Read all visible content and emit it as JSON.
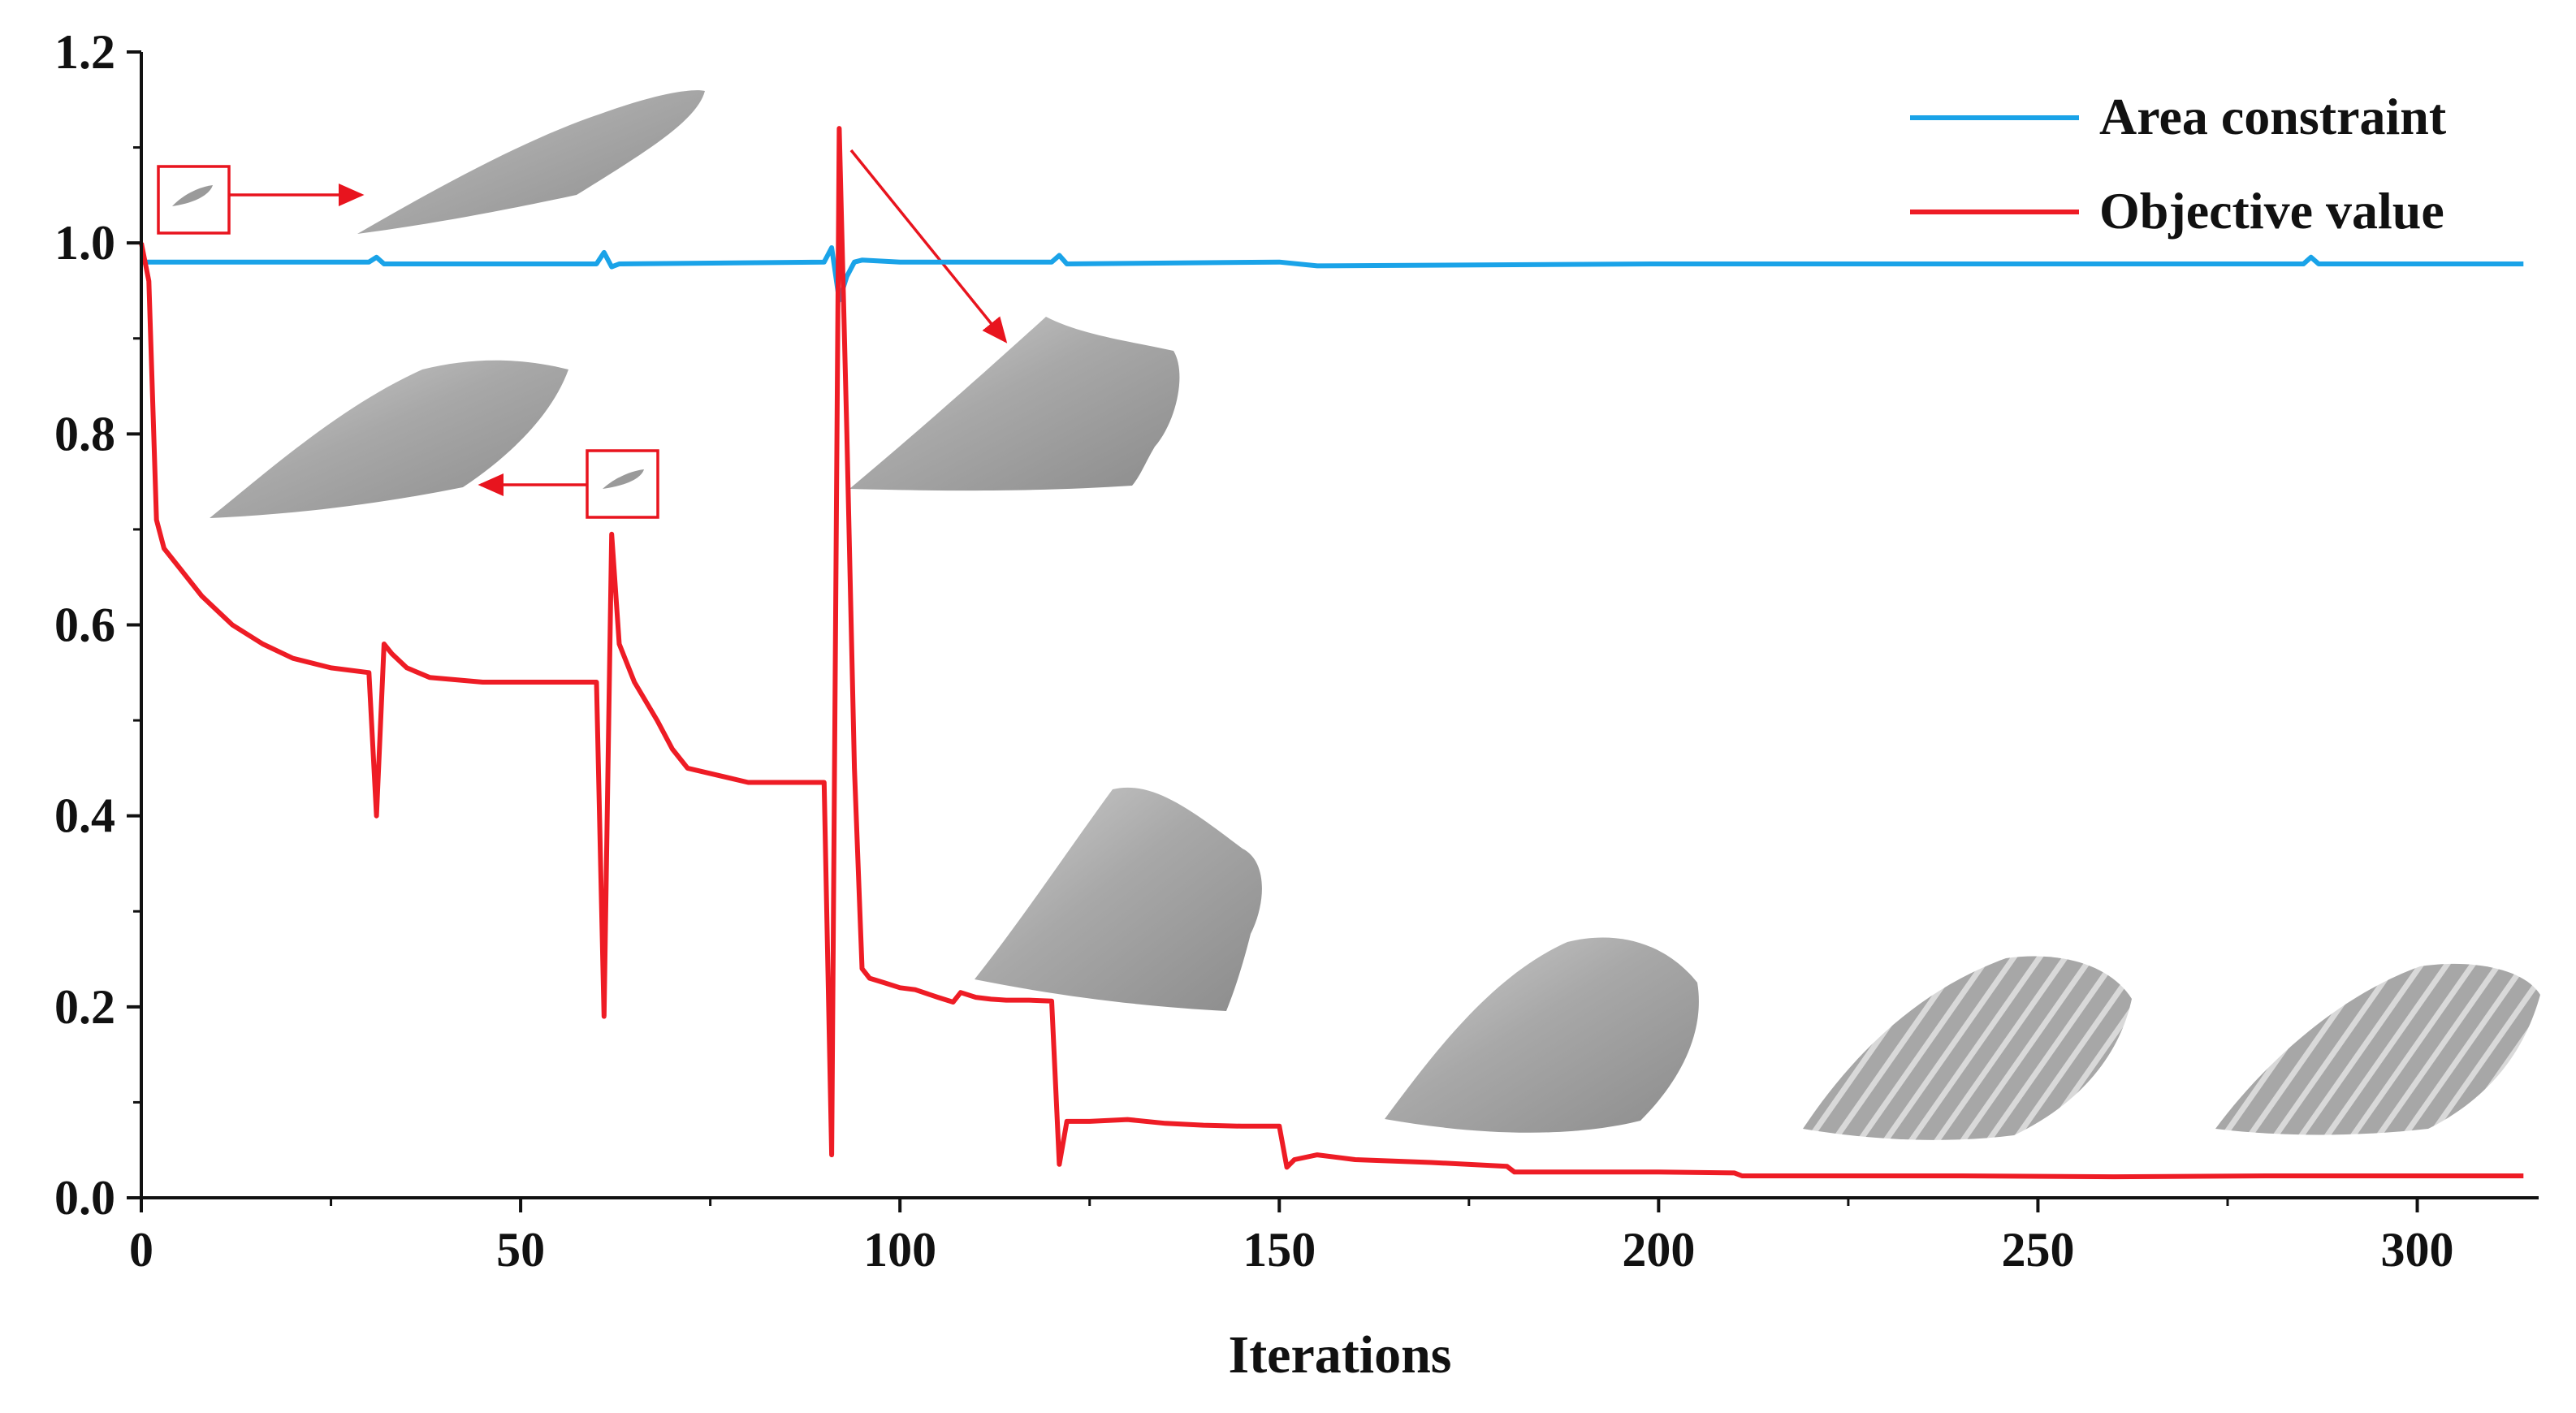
{
  "chart_data": {
    "type": "line",
    "xlabel": "Iterations",
    "ylabel": "",
    "xlim": [
      0,
      316
    ],
    "ylim": [
      0,
      1.2
    ],
    "xticks": [
      0,
      50,
      100,
      150,
      200,
      250,
      300
    ],
    "xtick_labels": [
      "0",
      "50",
      "100",
      "150",
      "200",
      "250",
      "300"
    ],
    "yticks": [
      0,
      0.2,
      0.4,
      0.6,
      0.8,
      1.0,
      1.2
    ],
    "ytick_labels": [
      "0.0",
      "0.2",
      "0.4",
      "0.6",
      "0.8",
      "1.0",
      "1.2"
    ],
    "grid": false,
    "legend_position": "top-right",
    "series": [
      {
        "name": "Area constraint",
        "color": "#1AA3E8",
        "x": [
          0,
          1,
          5,
          30,
          31,
          32,
          60,
          61,
          62,
          63,
          90,
          91,
          92,
          93,
          94,
          95,
          100,
          120,
          121,
          122,
          150,
          155,
          200,
          250,
          285,
          286,
          287,
          314
        ],
        "y": [
          0.98,
          0.98,
          0.98,
          0.98,
          0.985,
          0.978,
          0.978,
          0.99,
          0.975,
          0.978,
          0.98,
          0.995,
          0.94,
          0.965,
          0.98,
          0.982,
          0.98,
          0.98,
          0.987,
          0.978,
          0.98,
          0.976,
          0.978,
          0.978,
          0.978,
          0.985,
          0.978,
          0.978
        ]
      },
      {
        "name": "Objective value",
        "color": "#EE1C25",
        "x": [
          0,
          1,
          2,
          3,
          5,
          8,
          12,
          16,
          20,
          25,
          30,
          31,
          32,
          33,
          35,
          38,
          45,
          55,
          60,
          61,
          62,
          63,
          65,
          68,
          70,
          72,
          80,
          85,
          90,
          91,
          92,
          93,
          94,
          95,
          96,
          98,
          100,
          102,
          105,
          107,
          108,
          110,
          112,
          114,
          117,
          120,
          121,
          122,
          125,
          130,
          135,
          140,
          145,
          150,
          151,
          152,
          155,
          160,
          170,
          180,
          181,
          190,
          200,
          210,
          211,
          220,
          240,
          260,
          280,
          300,
          314
        ],
        "y": [
          1.0,
          0.96,
          0.71,
          0.68,
          0.66,
          0.63,
          0.6,
          0.58,
          0.565,
          0.555,
          0.55,
          0.4,
          0.58,
          0.57,
          0.555,
          0.545,
          0.54,
          0.54,
          0.54,
          0.19,
          0.695,
          0.58,
          0.54,
          0.5,
          0.47,
          0.45,
          0.435,
          0.435,
          0.435,
          0.045,
          1.12,
          0.8,
          0.45,
          0.24,
          0.23,
          0.225,
          0.22,
          0.218,
          0.21,
          0.205,
          0.215,
          0.21,
          0.208,
          0.207,
          0.207,
          0.206,
          0.035,
          0.08,
          0.08,
          0.082,
          0.078,
          0.076,
          0.075,
          0.075,
          0.032,
          0.04,
          0.045,
          0.04,
          0.037,
          0.033,
          0.027,
          0.027,
          0.027,
          0.026,
          0.023,
          0.023,
          0.023,
          0.022,
          0.023,
          0.023,
          0.023
        ]
      }
    ]
  },
  "colors": {
    "annotation": "#E8141E",
    "shape_fill": "#A9A9A9",
    "axis": "#111111"
  },
  "shape_icons": [
    "spindle-shape",
    "spindle-shape",
    "jagged-pod-shape",
    "rough-cone-shape",
    "faceted-ovoid-shape",
    "ribbed-ovoid-shape",
    "ribbed-ovoid-shape"
  ]
}
